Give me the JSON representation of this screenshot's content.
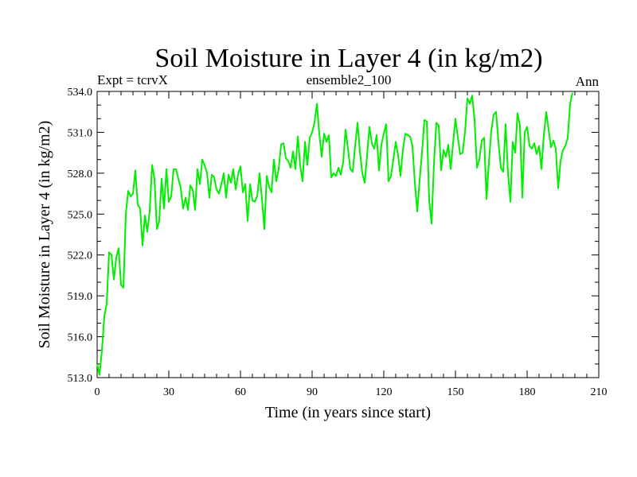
{
  "chart_data": {
    "type": "line",
    "title": "Soil Moisture in Layer 4 (in kg/m2)",
    "left_note": "Expt = tcrvX",
    "center_note": "ensemble2_100",
    "right_note": "Ann",
    "xlabel": "Time (in years since start)",
    "ylabel": "Soil Moisture in Layer 4 (in kg/m2)",
    "xlim": [
      0,
      210
    ],
    "ylim": [
      513.0,
      534.0
    ],
    "xticks": [
      "0",
      "30",
      "60",
      "90",
      "120",
      "150",
      "180",
      "210"
    ],
    "yticks": [
      "513.0",
      "516.0",
      "519.0",
      "522.0",
      "525.0",
      "528.0",
      "531.0",
      "534.0"
    ],
    "grid": false,
    "line_color": "#00ee00",
    "series": [
      {
        "x": [
          0,
          1,
          2,
          3,
          4,
          5,
          6,
          7,
          8,
          9,
          10,
          11,
          12,
          13,
          14,
          15,
          16,
          17,
          18,
          19,
          20,
          21,
          22,
          23,
          24,
          25,
          26,
          27,
          28,
          29,
          30,
          31,
          32,
          33,
          34,
          35,
          36,
          37,
          38,
          39,
          40,
          41,
          42,
          43,
          44,
          45,
          46,
          47,
          48,
          49,
          50,
          51,
          52,
          53,
          54,
          55,
          56,
          57,
          58,
          59,
          60,
          61,
          62,
          63,
          64,
          65,
          66,
          67,
          68,
          69,
          70,
          71,
          72,
          73,
          74,
          75,
          76,
          77,
          78,
          79,
          80,
          81,
          82,
          83,
          84,
          85,
          86,
          87,
          88,
          89,
          90,
          91,
          92,
          93,
          94,
          95,
          96,
          97,
          98,
          99,
          100,
          101,
          102,
          103,
          104,
          105,
          106,
          107,
          108,
          109,
          110,
          111,
          112,
          113,
          114,
          115,
          116,
          117,
          118,
          119,
          120,
          121,
          122,
          123,
          124,
          125,
          126,
          127,
          128,
          129,
          130,
          131,
          132,
          133,
          134,
          135,
          136,
          137,
          138,
          139,
          140,
          141,
          142,
          143,
          144,
          145,
          146,
          147,
          148,
          149,
          150,
          151,
          152,
          153,
          154,
          155,
          156,
          157,
          158,
          159,
          160,
          161,
          162,
          163,
          164,
          165,
          166,
          167,
          168,
          169,
          170,
          171,
          172,
          173,
          174,
          175,
          176,
          177,
          178,
          179,
          180,
          181,
          182,
          183,
          184,
          185,
          186,
          187,
          188,
          189,
          190,
          191,
          192,
          193,
          194,
          195,
          196,
          197,
          198,
          199
        ],
        "values": [
          514.0,
          513.2,
          515.0,
          517.5,
          518.4,
          522.2,
          522.0,
          520.2,
          521.8,
          522.5,
          519.8,
          519.6,
          525.0,
          526.7,
          526.3,
          526.5,
          528.2,
          525.7,
          525.4,
          522.7,
          524.9,
          523.7,
          525.2,
          528.6,
          527.6,
          523.9,
          524.5,
          527.6,
          525.4,
          528.3,
          525.9,
          526.3,
          528.3,
          528.3,
          527.6,
          526.9,
          525.4,
          526.2,
          525.3,
          527.1,
          526.8,
          525.3,
          528.3,
          527.2,
          529.0,
          528.6,
          528.0,
          526.2,
          527.9,
          527.7,
          526.8,
          526.5,
          527.2,
          528.0,
          526.2,
          527.9,
          527.3,
          528.3,
          526.8,
          527.9,
          528.5,
          526.6,
          527.2,
          524.5,
          527.2,
          526.0,
          525.9,
          526.3,
          528.0,
          526.1,
          523.9,
          527.8,
          527.0,
          526.6,
          529.0,
          527.4,
          528.3,
          530.1,
          530.2,
          529.1,
          528.9,
          528.4,
          529.6,
          528.3,
          530.7,
          528.6,
          527.4,
          530.3,
          528.6,
          530.6,
          531.0,
          531.7,
          533.1,
          530.9,
          529.2,
          530.9,
          530.3,
          530.8,
          527.7,
          528.0,
          527.8,
          528.4,
          527.9,
          528.8,
          531.2,
          529.8,
          528.3,
          528.1,
          530.0,
          531.7,
          529.6,
          528.0,
          527.3,
          529.3,
          531.4,
          530.2,
          529.8,
          530.8,
          528.2,
          530.1,
          530.9,
          531.6,
          527.4,
          527.8,
          529.0,
          530.3,
          529.3,
          527.8,
          529.7,
          530.9,
          530.8,
          530.7,
          530.0,
          527.3,
          525.2,
          527.5,
          529.5,
          531.9,
          531.8,
          526.0,
          524.3,
          528.7,
          531.7,
          531.5,
          528.2,
          529.7,
          529.2,
          530.1,
          528.3,
          530.2,
          532.0,
          530.6,
          529.4,
          529.5,
          531.0,
          533.5,
          533.1,
          533.7,
          531.9,
          528.4,
          529.0,
          530.4,
          530.6,
          526.1,
          528.8,
          531.1,
          532.3,
          532.5,
          530.3,
          528.4,
          528.1,
          531.6,
          528.0,
          525.9,
          530.3,
          529.5,
          532.4,
          531.5,
          526.2,
          531.0,
          531.4,
          530.0,
          529.8,
          530.2,
          529.4,
          530.0,
          528.3,
          530.8,
          532.5,
          531.2,
          529.9,
          530.4,
          529.8,
          526.9,
          528.9,
          529.7,
          530.0,
          530.6,
          533.1,
          533.9
        ]
      }
    ]
  }
}
